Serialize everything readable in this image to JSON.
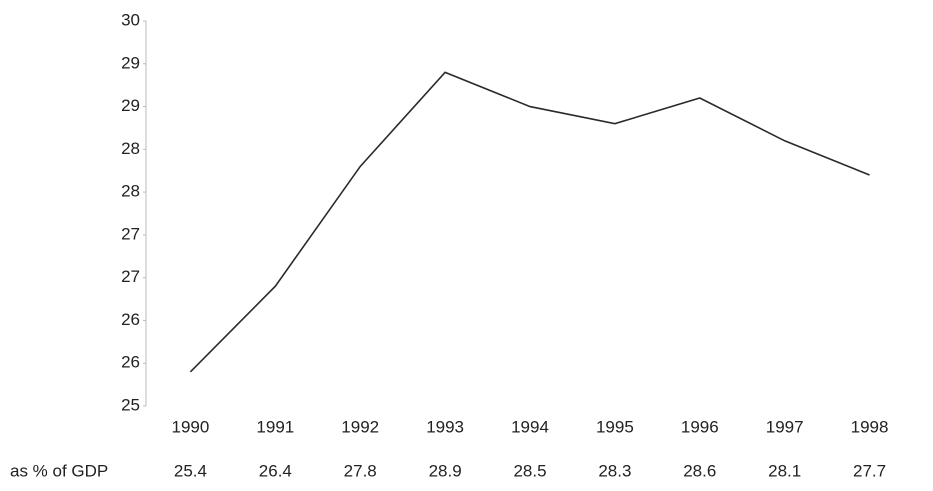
{
  "chart_data": {
    "type": "line",
    "categories": [
      "1990",
      "1991",
      "1992",
      "1993",
      "1994",
      "1995",
      "1996",
      "1997",
      "1998"
    ],
    "series": [
      {
        "name": "as % of GDP",
        "color": "#2a2a2a",
        "values": [
          25.4,
          26.4,
          27.8,
          28.9,
          28.5,
          28.3,
          28.6,
          28.1,
          27.7
        ]
      }
    ],
    "ylim": [
      25,
      29.5
    ],
    "yticks": [
      25,
      {
        "value": 25.5,
        "label": "26"
      },
      26,
      {
        "value": 26.5,
        "label": "27"
      },
      27,
      {
        "value": 27.5,
        "label": "28"
      },
      28,
      {
        "value": 28.5,
        "label": "29"
      },
      29,
      {
        "value": 29.5,
        "label": "30"
      }
    ],
    "grid": false
  }
}
